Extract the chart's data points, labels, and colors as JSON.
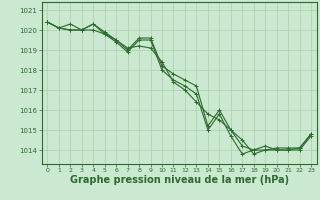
{
  "bg_color": "#cbe8d0",
  "grid_color": "#aacfaa",
  "line_color": "#2d6a2d",
  "marker_color": "#2d6a2d",
  "xlabel": "Graphe pression niveau de la mer (hPa)",
  "xlabel_fontsize": 7,
  "yticks": [
    1014,
    1015,
    1016,
    1017,
    1018,
    1019,
    1020,
    1021
  ],
  "xticks": [
    0,
    1,
    2,
    3,
    4,
    5,
    6,
    7,
    8,
    9,
    10,
    11,
    12,
    13,
    14,
    15,
    16,
    17,
    18,
    19,
    20,
    21,
    22,
    23
  ],
  "ylim": [
    1013.3,
    1021.4
  ],
  "xlim": [
    -0.5,
    23.5
  ],
  "series": [
    [
      1020.4,
      1020.1,
      1020.3,
      1020.0,
      1020.3,
      1019.9,
      1019.5,
      1019.0,
      1019.6,
      1019.6,
      1018.2,
      1017.8,
      1017.5,
      1017.2,
      1015.2,
      1016.0,
      1015.0,
      1014.2,
      1014.0,
      1014.2,
      1014.0,
      1014.0,
      1014.1,
      1014.8
    ],
    [
      1020.4,
      1020.1,
      1020.0,
      1020.0,
      1020.0,
      1019.8,
      1019.5,
      1019.1,
      1019.2,
      1019.1,
      1018.4,
      1017.4,
      1017.0,
      1016.4,
      1015.8,
      1015.5,
      1015.0,
      1014.5,
      1013.8,
      1014.0,
      1014.1,
      1014.1,
      1014.1,
      1014.8
    ],
    [
      1020.4,
      1020.1,
      1020.0,
      1020.0,
      1020.3,
      1019.8,
      1019.4,
      1018.9,
      1019.5,
      1019.5,
      1018.0,
      1017.5,
      1017.2,
      1016.8,
      1015.0,
      1015.8,
      1014.7,
      1013.8,
      1014.0,
      1014.0,
      1014.0,
      1014.0,
      1014.0,
      1014.7
    ]
  ]
}
